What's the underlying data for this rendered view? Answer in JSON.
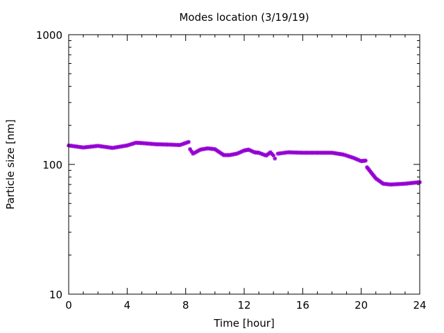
{
  "chart_data": {
    "type": "scatter",
    "title": "Modes location (3/19/19)",
    "xlabel": "Time [hour]",
    "ylabel": "Particle size [nm]",
    "xlim": [
      0,
      24
    ],
    "ylim": [
      10,
      1000
    ],
    "yscale": "log",
    "grid": false,
    "xticks": [
      0,
      4,
      8,
      12,
      16,
      20,
      24
    ],
    "xtick_labels": [
      "0",
      "4",
      "8",
      "12",
      "16",
      "20",
      "24"
    ],
    "yticks": [
      10,
      100,
      1000
    ],
    "ytick_labels": [
      "10",
      "100",
      "1000"
    ],
    "series": [
      {
        "color": "#9400d3",
        "segments": [
          [
            [
              0,
              140
            ],
            [
              1,
              135
            ],
            [
              2,
              139
            ],
            [
              3,
              134
            ],
            [
              4,
              140
            ],
            [
              4.6,
              147
            ],
            [
              5,
              146
            ],
            [
              6,
              143
            ],
            [
              7,
              142
            ],
            [
              7.6,
              141
            ],
            [
              8.2,
              149
            ]
          ],
          [
            [
              8.3,
              131
            ],
            [
              8.5,
              121
            ],
            [
              9,
              130
            ],
            [
              9.5,
              133
            ],
            [
              10,
              131
            ],
            [
              10.6,
              118
            ],
            [
              11,
              118
            ],
            [
              11.5,
              121
            ],
            [
              12,
              128
            ],
            [
              12.3,
              130
            ],
            [
              12.7,
              124
            ],
            [
              13,
              123
            ],
            [
              13.5,
              117
            ],
            [
              13.8,
              124
            ],
            [
              14,
              117
            ],
            [
              14.1,
              111
            ]
          ],
          [
            [
              14.3,
              121
            ],
            [
              15,
              124
            ],
            [
              16,
              123
            ],
            [
              17,
              123
            ],
            [
              18,
              123
            ],
            [
              18.8,
              119
            ],
            [
              19.5,
              112
            ],
            [
              20,
              106
            ],
            [
              20.3,
              107
            ]
          ],
          [
            [
              20.4,
              95
            ],
            [
              20.7,
              86
            ],
            [
              21,
              78
            ],
            [
              21.5,
              71
            ],
            [
              22,
              70
            ],
            [
              23,
              71
            ],
            [
              24,
              73
            ]
          ]
        ]
      }
    ]
  }
}
